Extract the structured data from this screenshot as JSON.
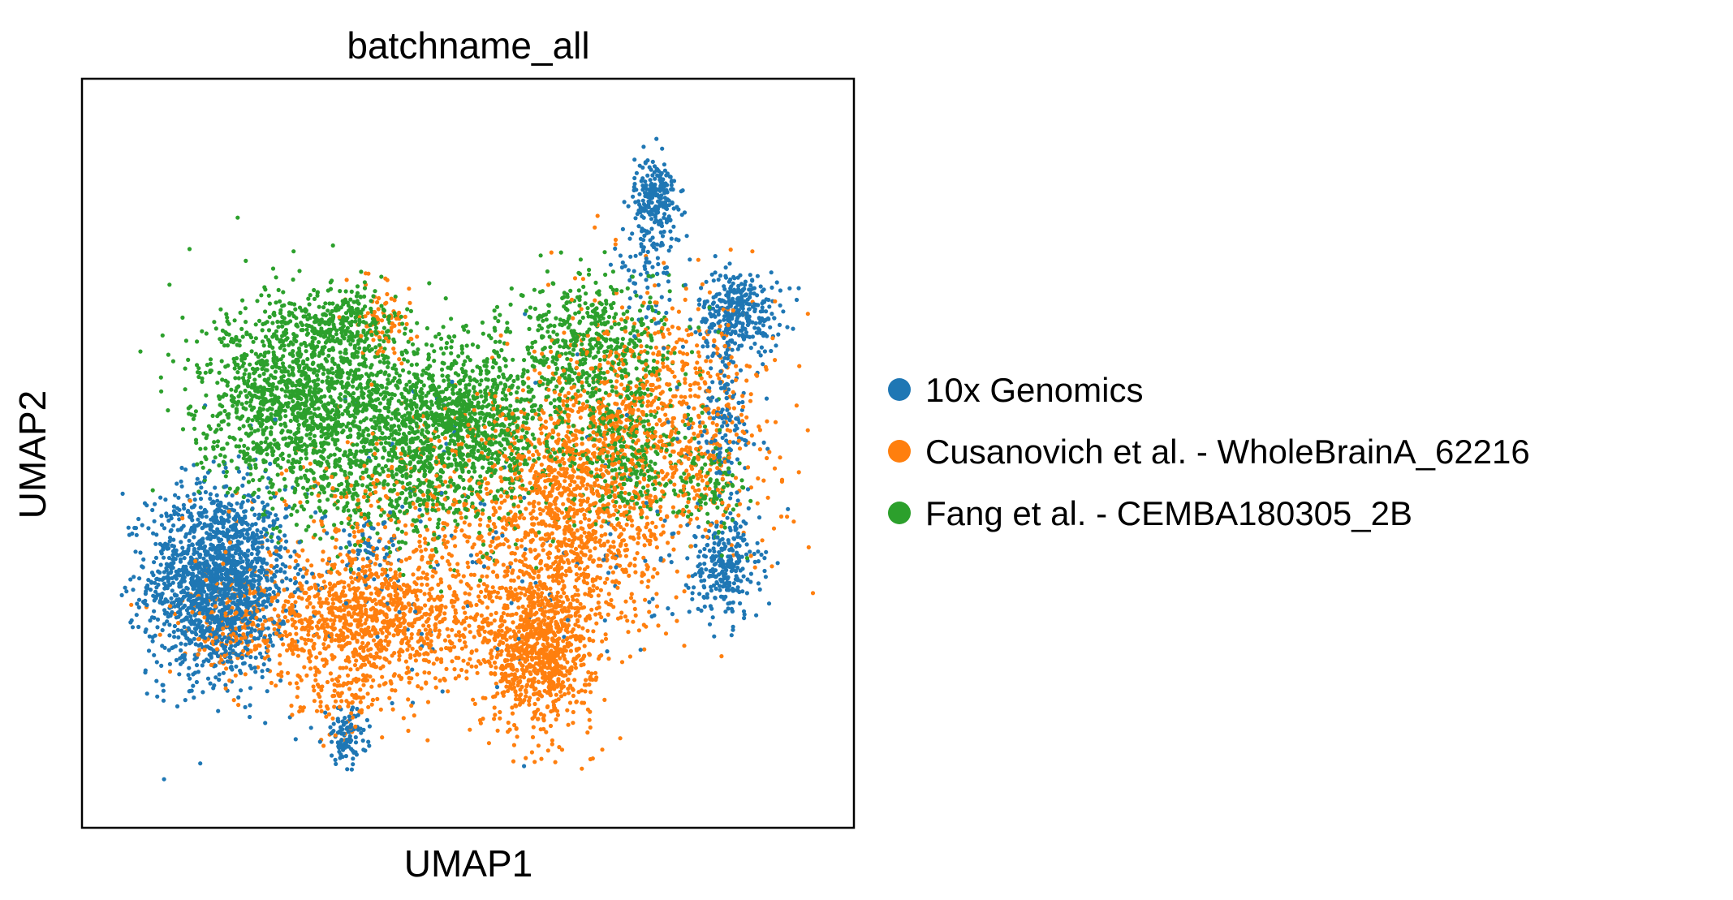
{
  "chart_data": {
    "type": "scatter",
    "title": "batchname_all",
    "xlabel": "UMAP1",
    "ylabel": "UMAP2",
    "xlim": [
      0,
      100
    ],
    "ylim": [
      0,
      100
    ],
    "ticks_visible": false,
    "grid": false,
    "legend_position": "right",
    "series": [
      {
        "name": "10x Genomics",
        "color": "#1f77b4",
        "clusters": [
          {
            "cx": 14,
            "cy": 31,
            "sx": 5,
            "sy": 7,
            "n": 1700
          },
          {
            "cx": 77,
            "cy": 88,
            "sx": 1.5,
            "sy": 3,
            "n": 220
          },
          {
            "cx": 89,
            "cy": 71,
            "sx": 3,
            "sy": 3,
            "n": 320
          },
          {
            "cx": 87,
            "cy": 33,
            "sx": 2.5,
            "sy": 4,
            "n": 260
          },
          {
            "cx": 32.5,
            "cy": 8,
            "sx": 1.5,
            "sy": 2,
            "n": 110
          },
          {
            "cx": 87,
            "cy": 55,
            "sx": 2.5,
            "sy": 6,
            "n": 140
          },
          {
            "cx": 76,
            "cy": 78,
            "sx": 2.5,
            "sy": 4,
            "n": 90
          },
          {
            "cx": 36,
            "cy": 35,
            "sx": 2.5,
            "sy": 2.5,
            "n": 60
          },
          {
            "cx": 50,
            "cy": 35,
            "sx": 22,
            "sy": 12,
            "n": 160
          }
        ]
      },
      {
        "name": "Cusanovich et al. - WholeBrainA_62216",
        "color": "#ff7f0e",
        "clusters": [
          {
            "cx": 36,
            "cy": 25,
            "sx": 8,
            "sy": 5,
            "n": 1100
          },
          {
            "cx": 60,
            "cy": 21,
            "sx": 4,
            "sy": 6,
            "n": 900
          },
          {
            "cx": 65,
            "cy": 42,
            "sx": 7,
            "sy": 10,
            "n": 1100
          },
          {
            "cx": 78,
            "cy": 55,
            "sx": 8,
            "sy": 9,
            "n": 800
          },
          {
            "cx": 38,
            "cy": 70,
            "sx": 2,
            "sy": 3,
            "n": 80
          },
          {
            "cx": 17,
            "cy": 25,
            "sx": 4,
            "sy": 4,
            "n": 180
          },
          {
            "cx": 50,
            "cy": 40,
            "sx": 15,
            "sy": 8,
            "n": 500
          },
          {
            "cx": 32,
            "cy": 14,
            "sx": 3,
            "sy": 3,
            "n": 80
          }
        ]
      },
      {
        "name": "Fang et al. - CEMBA180305_2B",
        "color": "#2ca02c",
        "clusters": [
          {
            "cx": 25,
            "cy": 58,
            "sx": 7,
            "sy": 7,
            "n": 1300
          },
          {
            "cx": 32,
            "cy": 69,
            "sx": 4,
            "sy": 3,
            "n": 250
          },
          {
            "cx": 48,
            "cy": 55,
            "sx": 9,
            "sy": 6,
            "n": 1400
          },
          {
            "cx": 68,
            "cy": 66,
            "sx": 6,
            "sy": 5,
            "n": 500
          },
          {
            "cx": 73,
            "cy": 50,
            "sx": 4,
            "sy": 5,
            "n": 300
          },
          {
            "cx": 40,
            "cy": 45,
            "sx": 8,
            "sy": 5,
            "n": 400
          },
          {
            "cx": 84,
            "cy": 45,
            "sx": 3,
            "sy": 4,
            "n": 120
          }
        ]
      }
    ]
  }
}
